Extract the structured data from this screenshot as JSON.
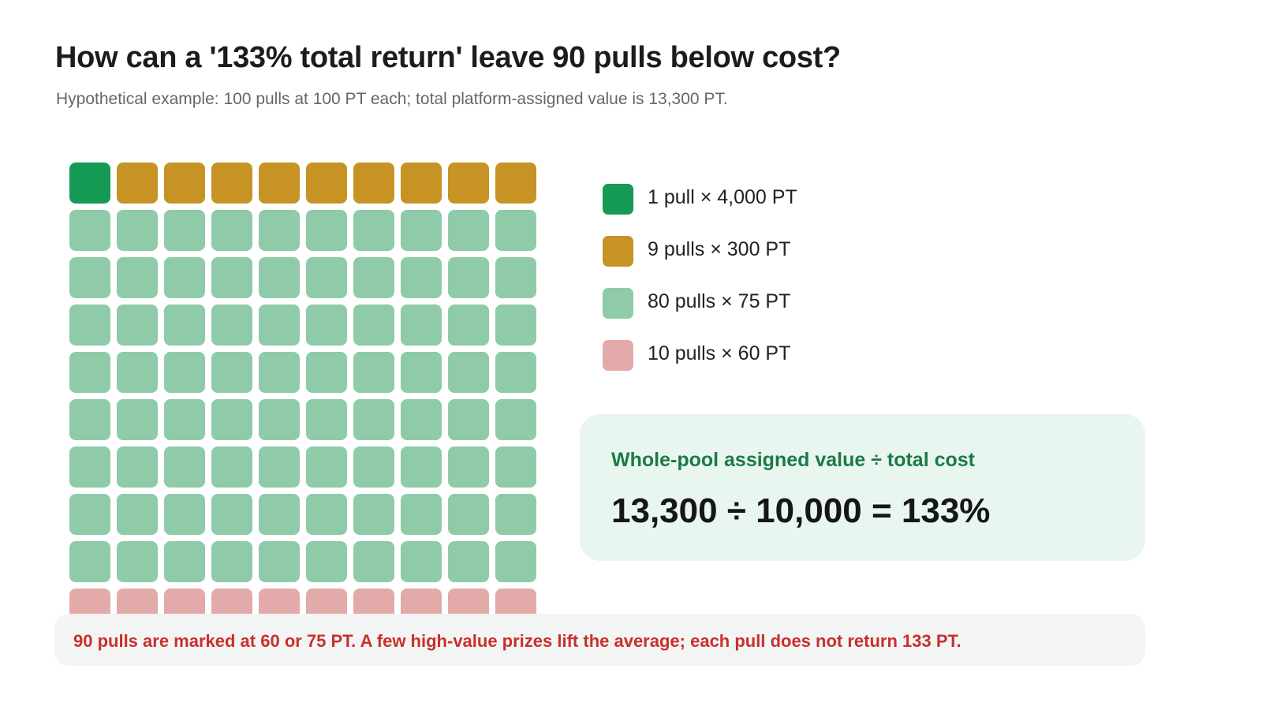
{
  "title": "How can a '133% total return' leave 90 pulls below cost?",
  "subtitle": "Hypothetical example: 100 pulls at 100 PT each; total platform-assigned value is 13,300 PT.",
  "colors": {
    "jackpot": "#159a55",
    "high": "#c69324",
    "mid": "#8fcaa9",
    "low": "#e3aaaa"
  },
  "chart_data": {
    "type": "waffle",
    "grid": {
      "rows": 10,
      "columns": 10
    },
    "total_cells": 100,
    "categories": [
      {
        "key": "jackpot",
        "label": "1 pull × 4,000 PT",
        "count": 1,
        "value_pt": 4000,
        "color": "#159a55"
      },
      {
        "key": "high",
        "label": "9 pulls × 300 PT",
        "count": 9,
        "value_pt": 300,
        "color": "#c69324"
      },
      {
        "key": "mid",
        "label": "80 pulls × 75 PT",
        "count": 80,
        "value_pt": 75,
        "color": "#8fcaa9"
      },
      {
        "key": "low",
        "label": "10 pulls × 60 PT",
        "count": 10,
        "value_pt": 60,
        "color": "#e3aaaa"
      }
    ],
    "legend_position": "right"
  },
  "calculation": {
    "heading": "Whole-pool assigned value ÷ total cost",
    "equation": "13,300 ÷ 10,000 = 133%"
  },
  "note": "90 pulls are marked at 60 or 75 PT. A few high-value prizes lift the average; each pull does not return 133 PT."
}
